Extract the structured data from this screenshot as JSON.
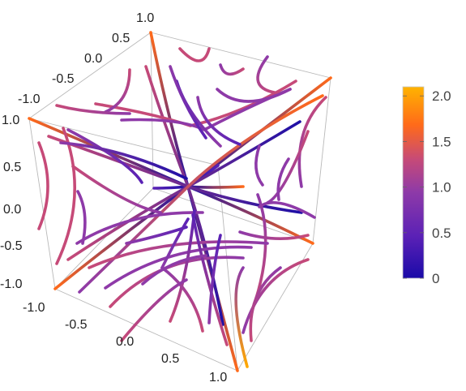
{
  "chart_data": {
    "type": "3d-stream-plot",
    "axes": {
      "x": {
        "range": [
          -1.0,
          1.0
        ],
        "ticks": [
          "-1.0",
          "-0.5",
          "0.0",
          "0.5",
          "1.0"
        ]
      },
      "y": {
        "range": [
          -1.0,
          1.0
        ],
        "ticks": [
          "-1.0",
          "-0.5",
          "0.0",
          "0.5",
          "1.0"
        ]
      },
      "z": {
        "range": [
          -1.0,
          1.0
        ],
        "ticks": [
          "-1.0",
          "-0.5",
          "0.0",
          "0.5",
          "1.0"
        ]
      }
    },
    "box": true,
    "color_function": "magnitude",
    "colorbar": {
      "range": [
        0,
        2.1
      ],
      "ticks": [
        "0",
        "0.5",
        "1.0",
        "1.5",
        "2.0"
      ],
      "tick_values": [
        0,
        0.5,
        1.0,
        1.5,
        2.0
      ],
      "colors": [
        "#1a0aa8",
        "#5b21b6",
        "#8e3aa8",
        "#c64a78",
        "#ff6a1a",
        "#ffb300"
      ]
    }
  }
}
